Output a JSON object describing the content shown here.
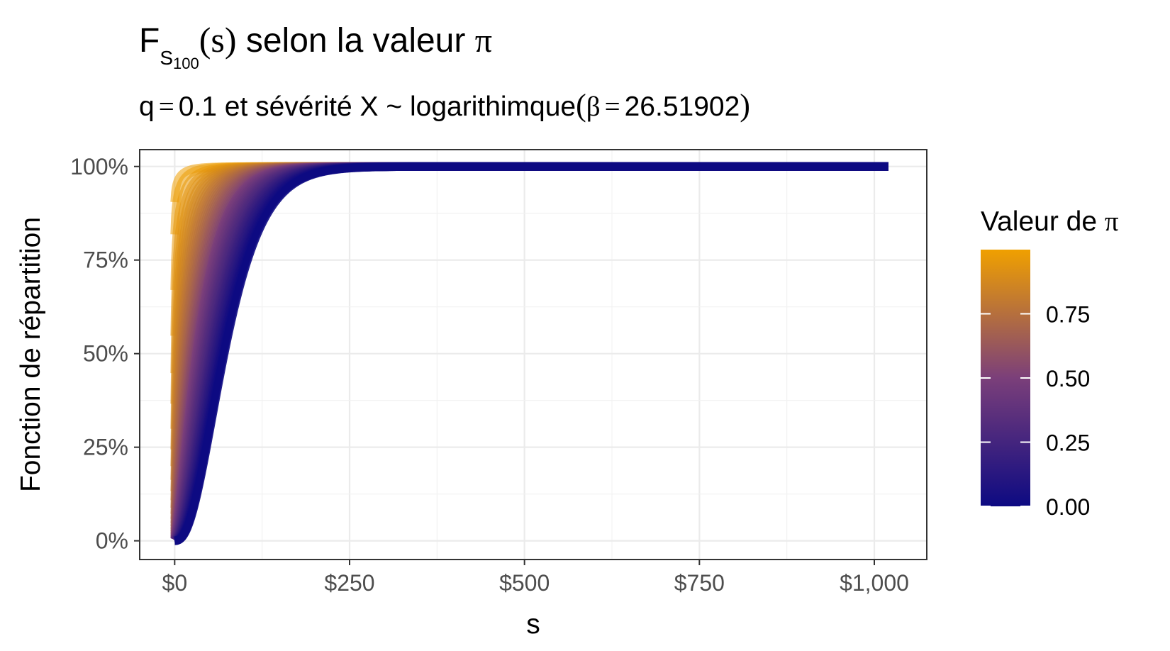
{
  "chart_data": {
    "type": "line",
    "title": {
      "prefix": "F",
      "subscript_main": "S",
      "subscript_index": "100",
      "argument": "(s)",
      "suffix": " selon la valeur ",
      "symbol": "π"
    },
    "subtitle": {
      "q_label": "q",
      "equals": "=",
      "q_value": "0.1",
      "text_middle": " et sévérité X ~ logarithimque",
      "open_paren": "(",
      "beta_symbol": "β",
      "beta_value": "26.51902",
      "close_paren": ")"
    },
    "xlabel": "s",
    "ylabel": "Fonction de répartition",
    "x_ticks": [
      "$0",
      "$250",
      "$500",
      "$750",
      "$1,000"
    ],
    "x_tick_values": [
      0,
      250,
      500,
      750,
      1000
    ],
    "y_ticks": [
      "0%",
      "25%",
      "50%",
      "75%",
      "100%"
    ],
    "y_tick_values": [
      0,
      0.25,
      0.5,
      0.75,
      1
    ],
    "xlim": [
      -50,
      1075
    ],
    "ylim": [
      -0.05,
      1.045
    ],
    "grid": true,
    "legend": {
      "title_text": "Valeur de ",
      "title_symbol": "π",
      "placement": "right",
      "ticks": [
        "0.00",
        "0.25",
        "0.50",
        "0.75"
      ],
      "tick_values": [
        0,
        0.25,
        0.5,
        0.75
      ],
      "range": [
        0,
        1
      ],
      "color_low": "#0d0a82",
      "color_mid": "#7b3f7a",
      "color_high": "#f0a000"
    },
    "series_pi": [
      0.0,
      0.02,
      0.04,
      0.06,
      0.08,
      0.1,
      0.12,
      0.14,
      0.16,
      0.18,
      0.2,
      0.22,
      0.24,
      0.26,
      0.28,
      0.3,
      0.32,
      0.34,
      0.36,
      0.38,
      0.4,
      0.42,
      0.44,
      0.46,
      0.48,
      0.5,
      0.52,
      0.54,
      0.56,
      0.58,
      0.6,
      0.62,
      0.64,
      0.66,
      0.68,
      0.7,
      0.72,
      0.74,
      0.76,
      0.78,
      0.8,
      0.82,
      0.84,
      0.86,
      0.88,
      0.9,
      0.92,
      0.94,
      0.96,
      0.98,
      0.99
    ],
    "model": {
      "n": 100,
      "q": 0.1,
      "beta": 26.51902,
      "x_max": 1020
    }
  }
}
